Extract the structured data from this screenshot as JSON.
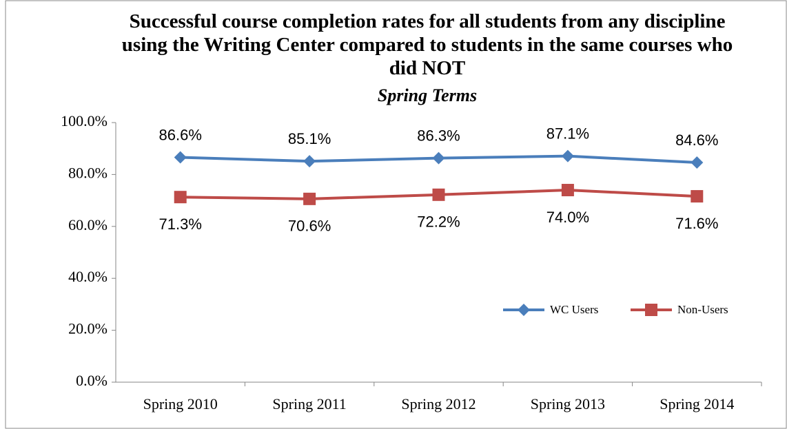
{
  "chart_data": {
    "type": "line",
    "title": "Successful course completion rates for all students from any discipline using the Writing Center compared to students in the same courses who did NOT",
    "subtitle": "Spring Terms",
    "categories": [
      "Spring 2010",
      "Spring 2011",
      "Spring 2012",
      "Spring 2013",
      "Spring 2014"
    ],
    "series": [
      {
        "name": "WC Users",
        "color": "#4a7ebb",
        "marker": "diamond",
        "values": [
          86.6,
          85.1,
          86.3,
          87.1,
          84.6
        ],
        "value_labels": [
          "86.6%",
          "85.1%",
          "86.3%",
          "87.1%",
          "84.6%"
        ]
      },
      {
        "name": "Non-Users",
        "color": "#be4b48",
        "marker": "square",
        "values": [
          71.3,
          70.6,
          72.2,
          74.0,
          71.6
        ],
        "value_labels": [
          "71.3%",
          "70.6%",
          "72.2%",
          "74.0%",
          "71.6%"
        ]
      }
    ],
    "ylim": [
      0,
      100
    ],
    "yticks": [
      {
        "value": 0,
        "label": "0.0%"
      },
      {
        "value": 20,
        "label": "20.0%"
      },
      {
        "value": 40,
        "label": "40.0%"
      },
      {
        "value": 60,
        "label": "60.0%"
      },
      {
        "value": 80,
        "label": "80.0%"
      },
      {
        "value": 100,
        "label": "100.0%"
      }
    ],
    "grid": false,
    "legend": "right"
  }
}
